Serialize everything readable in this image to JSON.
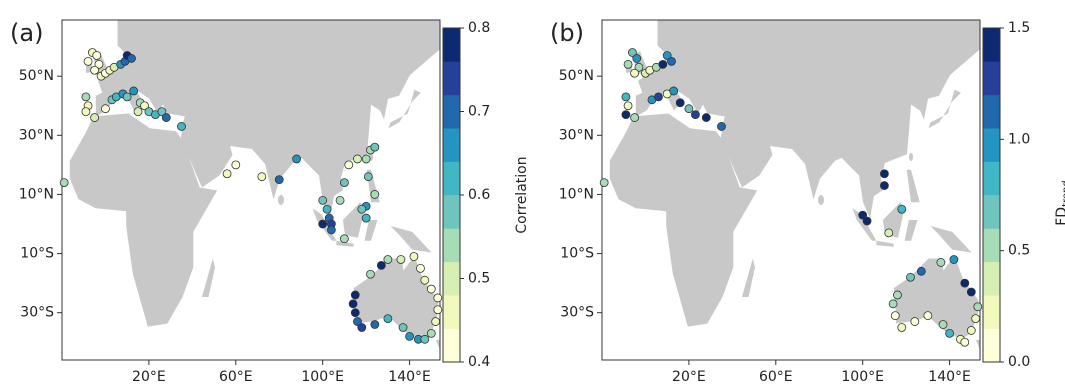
{
  "chart_data": [
    {
      "type": "scatter",
      "panel_label": "(a)",
      "x": [
        -6,
        -4,
        -8,
        -3,
        -5,
        -2,
        0,
        2,
        4,
        7,
        9,
        10,
        12,
        -9,
        -8,
        -9,
        -5,
        0,
        3,
        5,
        8,
        10,
        13,
        16,
        18,
        15,
        20,
        23,
        26,
        28,
        35,
        -19,
        56,
        60,
        72,
        80,
        88,
        100,
        102,
        103,
        104,
        100,
        104,
        108,
        110,
        112,
        116,
        120,
        122,
        124,
        121,
        124,
        120,
        118,
        120,
        110,
        115,
        114,
        115,
        116,
        118,
        124,
        130,
        137,
        140,
        144,
        147,
        150,
        152,
        153,
        153,
        150,
        147,
        145,
        142,
        136,
        130,
        127,
        122
      ],
      "values": [
        58,
        57,
        55,
        54,
        52,
        50,
        51,
        52,
        53,
        54,
        55,
        57,
        56,
        43,
        40,
        38,
        36,
        39,
        42,
        43,
        44,
        43,
        45,
        41,
        40,
        38,
        38,
        37,
        38,
        36,
        33,
        14,
        17,
        20,
        16,
        15,
        22,
        8,
        5,
        2,
        0,
        0,
        -2,
        8,
        14,
        20,
        22,
        22,
        25,
        26,
        16,
        10,
        6,
        5,
        2,
        -5,
        -24,
        -27,
        -30,
        -33,
        -35,
        -34,
        -32,
        -35,
        -38,
        -39,
        -39,
        -37,
        -33,
        -29,
        -25,
        -22,
        -19,
        -15,
        -11,
        -12,
        -12,
        -14,
        -17
      ],
      "color_values": [
        0.45,
        0.42,
        0.43,
        0.44,
        0.41,
        0.45,
        0.44,
        0.47,
        0.5,
        0.65,
        0.68,
        0.78,
        0.72,
        0.55,
        0.47,
        0.45,
        0.5,
        0.42,
        0.6,
        0.62,
        0.64,
        0.6,
        0.66,
        0.52,
        0.46,
        0.5,
        0.58,
        0.62,
        0.6,
        0.7,
        0.62,
        0.55,
        0.47,
        0.44,
        0.45,
        0.68,
        0.66,
        0.58,
        0.62,
        0.72,
        0.75,
        0.78,
        0.7,
        0.55,
        0.58,
        0.44,
        0.5,
        0.52,
        0.55,
        0.6,
        0.6,
        0.54,
        0.66,
        0.6,
        0.62,
        0.55,
        0.78,
        0.79,
        0.76,
        0.72,
        0.75,
        0.7,
        0.62,
        0.6,
        0.65,
        0.66,
        0.6,
        0.52,
        0.45,
        0.42,
        0.41,
        0.43,
        0.45,
        0.43,
        0.47,
        0.5,
        0.55,
        0.78,
        0.52
      ],
      "xlim": [
        -20,
        154
      ],
      "ylim": [
        -46,
        69
      ],
      "xticks": [
        {
          "value": 20,
          "label": "20°E"
        },
        {
          "value": 60,
          "label": "60°E"
        },
        {
          "value": 100,
          "label": "100°E"
        },
        {
          "value": 140,
          "label": "140°E"
        }
      ],
      "yticks": [
        {
          "value": 50,
          "label": "50°N"
        },
        {
          "value": 30,
          "label": "30°N"
        },
        {
          "value": 10,
          "label": "10°N"
        },
        {
          "value": -10,
          "label": "10°S"
        },
        {
          "value": -30,
          "label": "30°S"
        }
      ],
      "colorbar": {
        "label": "Correlation",
        "lim": [
          0.4,
          0.8
        ],
        "ticks": [
          0.4,
          0.5,
          0.6,
          0.7,
          0.8
        ],
        "colors": [
          "#ffffd9",
          "#f1f9bd",
          "#d6efb3",
          "#a6dcb6",
          "#6fc4be",
          "#41b6c4",
          "#2495c1",
          "#2168ad",
          "#24409a",
          "#0c2a70"
        ]
      }
    },
    {
      "type": "scatter",
      "panel_label": "(b)",
      "x": [
        -6,
        -4,
        -8,
        -3,
        -5,
        0,
        2,
        5,
        8,
        10,
        12,
        -9,
        -8,
        -9,
        -5,
        3,
        6,
        10,
        13,
        16,
        20,
        23,
        28,
        35,
        -19,
        110,
        110,
        100,
        102,
        112,
        118,
        116,
        114,
        115,
        118,
        124,
        130,
        137,
        140,
        145,
        147,
        150,
        152,
        153,
        150,
        147,
        142,
        136,
        127,
        122
      ],
      "values": [
        58,
        56,
        54,
        53,
        51,
        51,
        52,
        53,
        54,
        57,
        55,
        43,
        40,
        37,
        36,
        42,
        43,
        44,
        45,
        41,
        39,
        37,
        36,
        33,
        14,
        17,
        13,
        3,
        1,
        -3,
        5,
        -24,
        -27,
        -31,
        -35,
        -33,
        -31,
        -34,
        -37,
        -39,
        -40,
        -36,
        -32,
        -28,
        -23,
        -20,
        -12,
        -13,
        -16,
        -18
      ],
      "color_values": [
        0.7,
        0.9,
        0.55,
        0.6,
        0.2,
        0.4,
        0.3,
        0.6,
        1.4,
        1.0,
        1.2,
        0.8,
        0.3,
        1.45,
        0.5,
        1.0,
        1.3,
        0.2,
        0.9,
        1.4,
        0.7,
        1.3,
        1.5,
        1.1,
        0.5,
        1.45,
        1.4,
        1.45,
        1.4,
        0.4,
        0.8,
        0.55,
        0.5,
        0.1,
        0.3,
        0.1,
        0.0,
        0.5,
        0.8,
        0.2,
        0.1,
        0.3,
        0.2,
        0.6,
        1.45,
        1.4,
        0.9,
        0.6,
        1.2,
        0.7
      ],
      "xlim": [
        -20,
        154
      ],
      "ylim": [
        -46,
        69
      ],
      "xticks": [
        {
          "value": 20,
          "label": "20°E"
        },
        {
          "value": 60,
          "label": "60°E"
        },
        {
          "value": 100,
          "label": "100°E"
        },
        {
          "value": 140,
          "label": "140°E"
        }
      ],
      "yticks": [
        {
          "value": 50,
          "label": "50°N"
        },
        {
          "value": 30,
          "label": "30°N"
        },
        {
          "value": 10,
          "label": "10°N"
        },
        {
          "value": -10,
          "label": "10°S"
        },
        {
          "value": -30,
          "label": "30°S"
        }
      ],
      "colorbar": {
        "label": "FD",
        "label_sub": "trend",
        "lim": [
          0,
          1.5
        ],
        "ticks": [
          {
            "value": 0,
            "label": "0.0"
          },
          0.5,
          {
            "value": 1,
            "label": "1.0"
          },
          1.5
        ],
        "colors": [
          "#ffffd9",
          "#f1f9bd",
          "#d6efb3",
          "#a6dcb6",
          "#6fc4be",
          "#41b6c4",
          "#2495c1",
          "#2168ad",
          "#24409a",
          "#0c2a70"
        ]
      }
    }
  ]
}
